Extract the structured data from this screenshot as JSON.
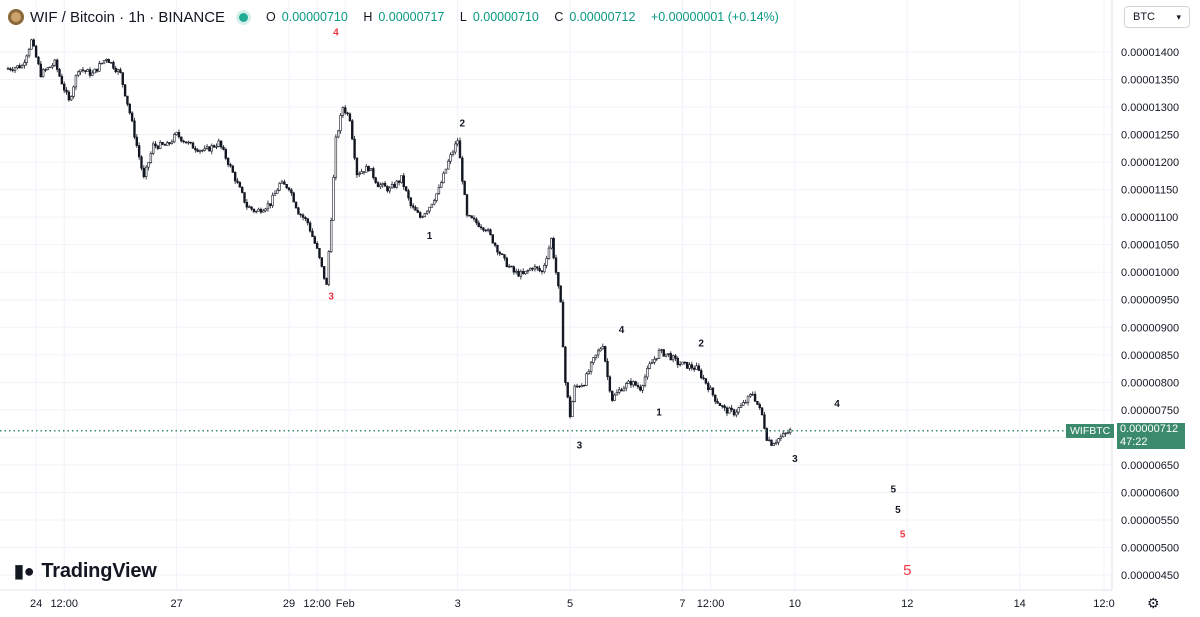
{
  "header": {
    "title": "WIF / Bitcoin · 1h · BINANCE",
    "open_label": "O",
    "open": "0.00000710",
    "high_label": "H",
    "high": "0.00000717",
    "low_label": "L",
    "low": "0.00000710",
    "close_label": "C",
    "close": "0.00000712",
    "change": "+0.00000001 (+0.14%)"
  },
  "currency_select": {
    "value": "BTC"
  },
  "branding": {
    "name": "TradingView"
  },
  "price_tag": {
    "symbol": "WIFBTC",
    "price": "0.00000712",
    "countdown": "47:22"
  },
  "colors": {
    "up": "#ffffff",
    "down": "#131722",
    "grid": "#f0f3fa",
    "wave_black": "#131722",
    "wave_red": "#f23645",
    "price_line": "#3c8a6c"
  },
  "icons": {
    "settings": "gear-icon",
    "status": "live-dot-icon"
  },
  "chart_data": {
    "type": "candlestick",
    "title": "WIF / Bitcoin · 1h · BINANCE",
    "y_ticks": [
      "0.00001400",
      "0.00001350",
      "0.00001300",
      "0.00001250",
      "0.00001200",
      "0.00001150",
      "0.00001100",
      "0.00001050",
      "0.00001000",
      "0.00000950",
      "0.00000900",
      "0.00000850",
      "0.00000800",
      "0.00000750",
      "0.00000700",
      "0.00000650",
      "0.00000600",
      "0.00000550",
      "0.00000500",
      "0.00000450"
    ],
    "y_values": [
      1.4e-05,
      1.35e-05,
      1.3e-05,
      1.25e-05,
      1.2e-05,
      1.15e-05,
      1.1e-05,
      1.05e-05,
      1e-05,
      9.5e-06,
      9e-06,
      8.5e-06,
      8e-06,
      7.5e-06,
      7e-06,
      6.5e-06,
      6e-06,
      5.5e-06,
      5e-06,
      4.5e-06
    ],
    "ylim": [
      4.2e-06,
      1.45e-05
    ],
    "x_ticks": [
      "24",
      "12:00",
      "27",
      "29",
      "12:00",
      "Feb",
      "3",
      "5",
      "7",
      "12:00",
      "10",
      "12",
      "14",
      "12:0"
    ],
    "x_tick_values": [
      -156,
      -144,
      -96,
      -48,
      -36,
      -24,
      24,
      72,
      120,
      132,
      168,
      216,
      264,
      300
    ],
    "x_range": [
      -168,
      300
    ],
    "x_unit": "hours from Feb 1 00:00",
    "last_price": 7.12e-06,
    "price_path": [
      [
        -168,
        1.37e-05
      ],
      [
        -162,
        1.375e-05
      ],
      [
        -158,
        1.42e-05
      ],
      [
        -154,
        1.36e-05
      ],
      [
        -148,
        1.38e-05
      ],
      [
        -142,
        1.31e-05
      ],
      [
        -138,
        1.37e-05
      ],
      [
        -132,
        1.36e-05
      ],
      [
        -126,
        1.39e-05
      ],
      [
        -120,
        1.36e-05
      ],
      [
        -116,
        1.29e-05
      ],
      [
        -110,
        1.17e-05
      ],
      [
        -106,
        1.23e-05
      ],
      [
        -100,
        1.23e-05
      ],
      [
        -96,
        1.25e-05
      ],
      [
        -90,
        1.23e-05
      ],
      [
        -84,
        1.22e-05
      ],
      [
        -78,
        1.235e-05
      ],
      [
        -74,
        1.2e-05
      ],
      [
        -70,
        1.16e-05
      ],
      [
        -66,
        1.12e-05
      ],
      [
        -62,
        1.11e-05
      ],
      [
        -56,
        1.125e-05
      ],
      [
        -52,
        1.16e-05
      ],
      [
        -48,
        1.155e-05
      ],
      [
        -44,
        1.11e-05
      ],
      [
        -40,
        1.09e-05
      ],
      [
        -36,
        1.04e-05
      ],
      [
        -32,
        9.75e-06
      ],
      [
        -30,
        1.1e-05
      ],
      [
        -28,
        1.24e-05
      ],
      [
        -25,
        1.3e-05
      ],
      [
        -22,
        1.28e-05
      ],
      [
        -19,
        1.18e-05
      ],
      [
        -14,
        1.19e-05
      ],
      [
        -10,
        1.16e-05
      ],
      [
        -5,
        1.15e-05
      ],
      [
        0,
        1.17e-05
      ],
      [
        4,
        1.12e-05
      ],
      [
        8,
        1.1e-05
      ],
      [
        12,
        1.12e-05
      ],
      [
        16,
        1.15e-05
      ],
      [
        20,
        1.2e-05
      ],
      [
        24,
        1.24e-05
      ],
      [
        28,
        1.1e-05
      ],
      [
        32,
        1.09e-05
      ],
      [
        36,
        1.08e-05
      ],
      [
        40,
        1.05e-05
      ],
      [
        44,
        1.02e-05
      ],
      [
        48,
        1e-05
      ],
      [
        52,
        9.95e-06
      ],
      [
        56,
        1.01e-05
      ],
      [
        60,
        1e-05
      ],
      [
        64,
        1.06e-05
      ],
      [
        66,
        1e-05
      ],
      [
        68,
        9.4e-06
      ],
      [
        70,
        8e-06
      ],
      [
        72,
        7.4e-06
      ],
      [
        74,
        7.9e-06
      ],
      [
        78,
        8e-06
      ],
      [
        82,
        8.4e-06
      ],
      [
        86,
        8.7e-06
      ],
      [
        88,
        8.1e-06
      ],
      [
        90,
        7.7e-06
      ],
      [
        94,
        7.9e-06
      ],
      [
        98,
        8e-06
      ],
      [
        102,
        7.9e-06
      ],
      [
        106,
        8.3e-06
      ],
      [
        110,
        8.55e-06
      ],
      [
        114,
        8.5e-06
      ],
      [
        118,
        8.35e-06
      ],
      [
        122,
        8.3e-06
      ],
      [
        126,
        8.25e-06
      ],
      [
        130,
        8e-06
      ],
      [
        134,
        7.7e-06
      ],
      [
        138,
        7.5e-06
      ],
      [
        142,
        7.45e-06
      ],
      [
        146,
        7.6e-06
      ],
      [
        150,
        7.8e-06
      ],
      [
        154,
        7.4e-06
      ],
      [
        156,
        7e-06
      ],
      [
        158,
        6.9e-06
      ],
      [
        162,
        7e-06
      ],
      [
        166,
        7.12e-06
      ]
    ],
    "wave_labels": [
      {
        "text": "4",
        "x": -28,
        "price": 1.43e-05,
        "color": "red"
      },
      {
        "text": "3",
        "x": -30,
        "price": 9.5e-06,
        "color": "red"
      },
      {
        "text": "1",
        "x": 12,
        "price": 1.06e-05,
        "color": "black"
      },
      {
        "text": "2",
        "x": 26,
        "price": 1.265e-05,
        "color": "black"
      },
      {
        "text": "3",
        "x": 76,
        "price": 6.8e-06,
        "color": "black"
      },
      {
        "text": "4",
        "x": 94,
        "price": 8.9e-06,
        "color": "black"
      },
      {
        "text": "1",
        "x": 110,
        "price": 7.4e-06,
        "color": "black"
      },
      {
        "text": "2",
        "x": 128,
        "price": 8.65e-06,
        "color": "black"
      },
      {
        "text": "3",
        "x": 168,
        "price": 6.55e-06,
        "color": "black"
      },
      {
        "text": "4",
        "x": 186,
        "price": 7.55e-06,
        "color": "black"
      },
      {
        "text": "5",
        "x": 210,
        "price": 6e-06,
        "color": "black"
      },
      {
        "text": "5",
        "x": 212,
        "price": 5.63e-06,
        "color": "black"
      },
      {
        "text": "5",
        "x": 214,
        "price": 5.18e-06,
        "color": "red"
      },
      {
        "text": "5",
        "x": 216,
        "price": 4.5e-06,
        "color": "red"
      }
    ]
  }
}
